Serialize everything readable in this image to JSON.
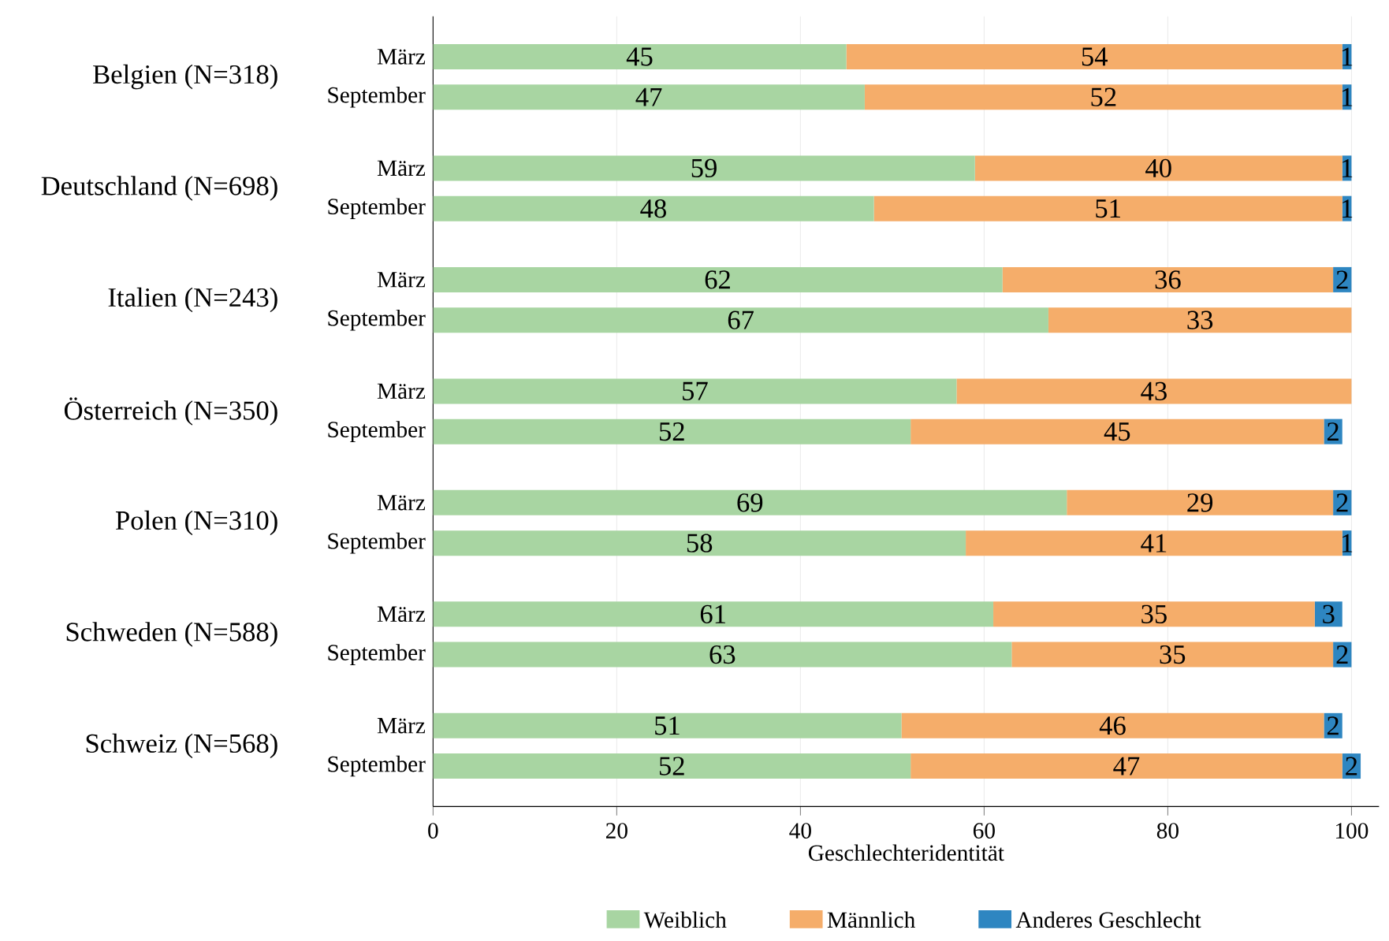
{
  "chart_data": {
    "type": "bar",
    "orientation": "horizontal",
    "stacked": true,
    "categories": [
      "März",
      "September",
      "März",
      "September",
      "März",
      "September",
      "März",
      "September",
      "März",
      "September",
      "März",
      "September",
      "März",
      "September"
    ],
    "annotations": [
      "Belgien (N=318)",
      "Deutschland (N=698)",
      "Italien (N=243)",
      "Österreich (N=350)",
      "Polen (N=310)",
      "Schweden (N=588)",
      "Schweiz (N=568)"
    ],
    "series": [
      {
        "name": "Weiblich",
        "color": "#a8d5a2",
        "values": [
          45,
          47,
          59,
          48,
          62,
          67,
          57,
          52,
          69,
          58,
          61,
          63,
          51,
          52
        ],
        "value_labels": [
          "45",
          "47",
          "59",
          "48",
          "62",
          "67",
          "57",
          "52",
          "69",
          "58",
          "61",
          "63",
          "51",
          "52"
        ]
      },
      {
        "name": "Männlich",
        "color": "#f5ad6a",
        "values": [
          54,
          52,
          40,
          51,
          36,
          33,
          43,
          45,
          29,
          41,
          35,
          35,
          46,
          47
        ],
        "value_labels": [
          "54",
          "52",
          "40",
          "51",
          "36",
          "33",
          "43",
          "45",
          "29",
          "41",
          "35",
          "35",
          "46",
          "47"
        ]
      },
      {
        "name": "Anderes Geschlecht",
        "color": "#2e86c1",
        "values": [
          1,
          1,
          1,
          1,
          2,
          0,
          0,
          2,
          2,
          1,
          3,
          2,
          2,
          2
        ],
        "value_labels": [
          "1",
          "1",
          "1",
          "1",
          "2",
          null,
          null,
          "2",
          "2",
          "1",
          "3",
          "2",
          "2",
          "2"
        ]
      }
    ],
    "xlim": [
      0,
      103
    ],
    "xticks": [
      0,
      20,
      40,
      60,
      80,
      100
    ],
    "xlabel": "Geschlechteridentität",
    "grid": "x",
    "legend": "bottom"
  }
}
